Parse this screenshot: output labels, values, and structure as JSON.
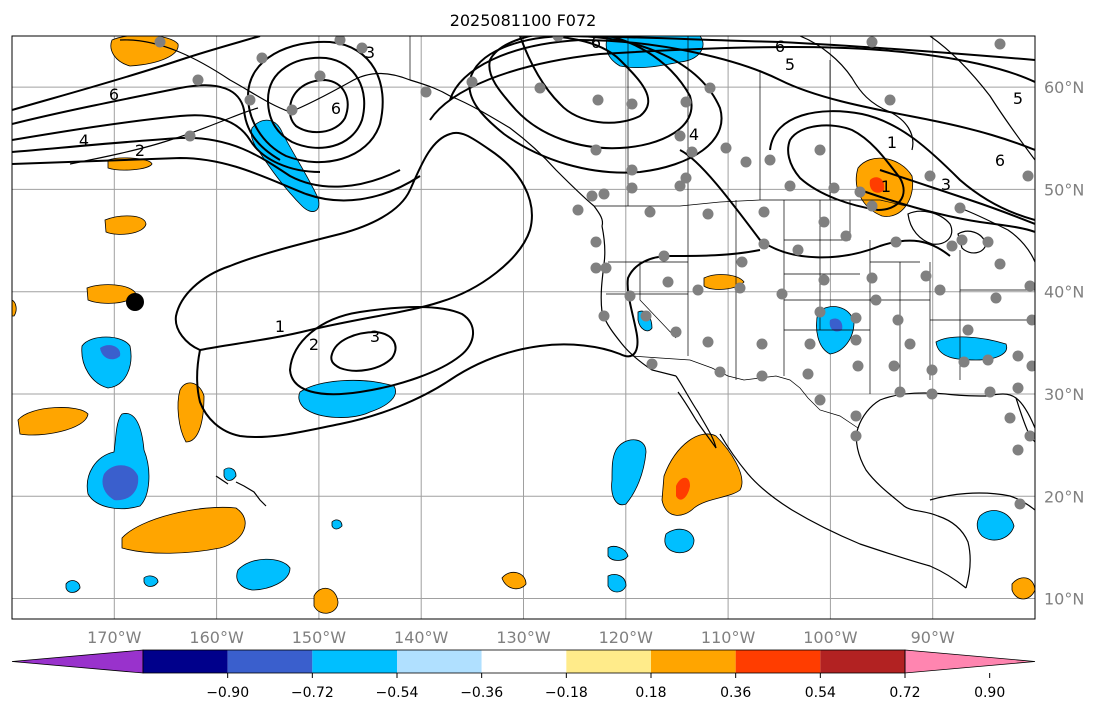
{
  "title": "2025081100 F072",
  "map": {
    "lon_range": [
      -180,
      -80
    ],
    "lat_range": [
      8,
      65
    ],
    "longitude_ticks": [
      "170°W",
      "160°W",
      "150°W",
      "140°W",
      "130°W",
      "120°W",
      "110°W",
      "100°W",
      "90°W"
    ],
    "latitude_ticks": [
      "60°N",
      "50°N",
      "40°N",
      "30°N",
      "20°N",
      "10°N"
    ],
    "gridlines": true
  },
  "colorbar": {
    "ticks": [
      "−0.90",
      "−0.72",
      "−0.54",
      "−0.36",
      "−0.18",
      "0.18",
      "0.36",
      "0.54",
      "0.72",
      "0.90"
    ],
    "colors": [
      "#9932cc",
      "#00008b",
      "#3a5fcd",
      "#00bfff",
      "#b0e0ff",
      "#ffffff",
      "#ffeb8a",
      "#ffa500",
      "#ff3d00",
      "#b22222",
      "#ff85b0"
    ]
  },
  "contour_labels": [
    "6",
    "6",
    "5",
    "4",
    "2",
    "3",
    "6",
    "4",
    "1",
    "3",
    "6",
    "5",
    "6",
    "1",
    "2",
    "3",
    "1"
  ],
  "colors": {
    "orange": "#ffa500",
    "blue": "#00bfff",
    "dark_blue": "#3a5fcd",
    "red": "#ff3d00",
    "station": "#808080",
    "contour": "#000000",
    "grid": "#a0a0a0"
  }
}
